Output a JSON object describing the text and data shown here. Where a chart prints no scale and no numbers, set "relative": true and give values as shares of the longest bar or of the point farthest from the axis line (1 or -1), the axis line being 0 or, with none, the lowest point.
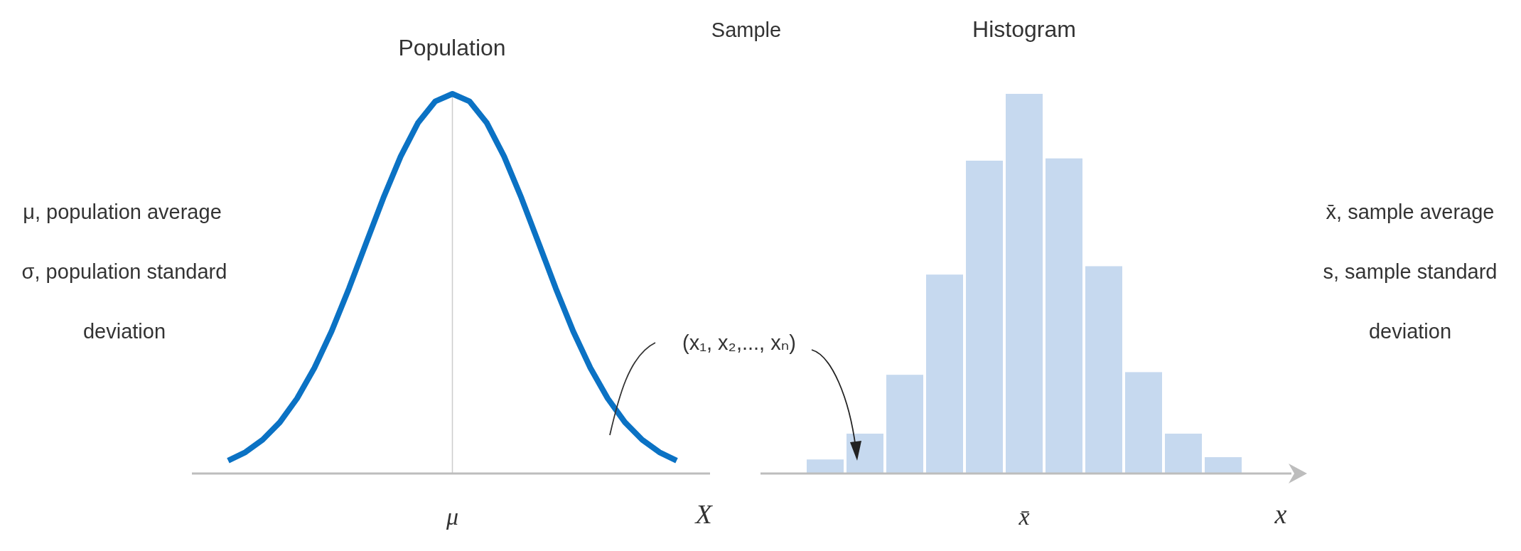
{
  "chart_data": [
    {
      "type": "line",
      "title": "Population",
      "xlabel": "X",
      "relative": true,
      "categories": [
        null,
        null,
        null,
        null,
        null,
        null,
        null,
        null,
        null,
        null,
        null,
        null,
        null,
        null,
        null,
        null,
        null,
        null,
        null,
        null,
        null,
        null,
        null,
        null,
        null,
        null,
        null
      ],
      "series": [
        {
          "color": "#0b72c4",
          "values": [
            0.034,
            0.056,
            0.089,
            0.135,
            0.198,
            0.278,
            0.375,
            0.487,
            0.607,
            0.726,
            0.835,
            0.923,
            0.98,
            1,
            0.98,
            0.923,
            0.835,
            0.726,
            0.607,
            0.487,
            0.375,
            0.278,
            0.198,
            0.135,
            0.089,
            0.056,
            0.034
          ]
        }
      ],
      "ref_lines": [
        {
          "axis": "x",
          "label": "μ",
          "color": "#cccccc"
        }
      ],
      "annotations": [
        "μ, population average",
        "σ, population standard deviation"
      ]
    },
    {
      "type": "bar",
      "title": "Histogram",
      "xlabel": "x",
      "relative": true,
      "categories": [
        null,
        null,
        null,
        null,
        null,
        null,
        null,
        null,
        null,
        null,
        null
      ],
      "values": [
        0.037,
        0.105,
        0.26,
        0.524,
        0.824,
        1,
        0.83,
        0.546,
        0.267,
        0.105,
        0.043
      ],
      "color": "#c6d9ef",
      "annotations": [
        "Sample",
        "(x₁, x₂,..., xₙ)",
        "x̄, sample average",
        "s, sample standard deviation",
        "x̄"
      ]
    }
  ]
}
